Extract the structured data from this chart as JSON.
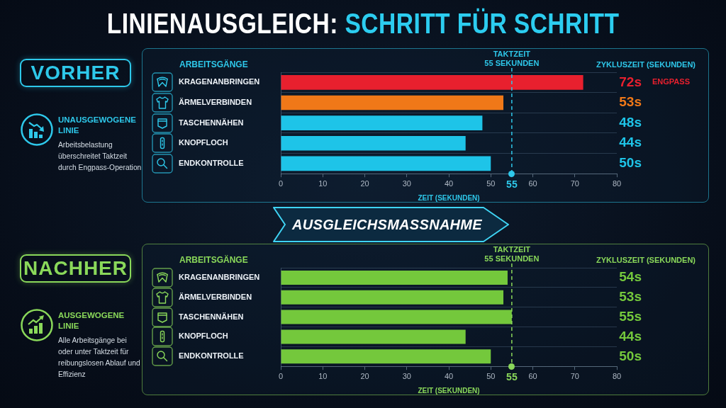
{
  "chart_data": [
    {
      "type": "other",
      "title": "LINIENAUSGLEICH: SCHRITT FÜR SCHRITT"
    },
    {
      "type": "bar",
      "orientation": "horizontal",
      "title": "VORHER",
      "ylabel": "ARBEITSGÄNGE",
      "xlabel": "ZEIT (SEKUNDEN)",
      "categories": [
        "KRAGENANBRINGEN",
        "ÄRMELVERBINDEN",
        "TASCHENNÄHEN",
        "KNOPFLOCH",
        "ENDKONTROLLE"
      ],
      "values": [
        72,
        53,
        48,
        44,
        50
      ],
      "colors": [
        "#e8202e",
        "#f07818",
        "#1ec4e8",
        "#1ec4e8",
        "#1ec4e8"
      ],
      "value_labels": [
        "72s",
        "53s",
        "48s",
        "44s",
        "50s"
      ],
      "xlim": [
        0,
        80
      ],
      "xticks": [
        0,
        10,
        20,
        30,
        40,
        50,
        55,
        60,
        70,
        80
      ],
      "grid": "y",
      "ref_lines": [
        {
          "axis": "x",
          "value": 55,
          "label": "TAKTZEIT\n55 SEKUNDEN",
          "color": "#2ec8ea",
          "line_style": "dashed"
        }
      ],
      "annotations": [
        "UNAUSGEWOGENE LINIE",
        "Arbeitsbelastung überschreitet Taktzeit durch Engpass-Operation",
        "ZYKLUSZEIT (SEKUNDEN)",
        "ENGPASS"
      ]
    },
    {
      "type": "other",
      "annotations": [
        "AUSGLEICHSMASSNAHME"
      ]
    },
    {
      "type": "bar",
      "orientation": "horizontal",
      "title": "NACHHER",
      "ylabel": "ARBEITSGÄNGE",
      "xlabel": "ZEIT (SEKUNDEN)",
      "categories": [
        "KRAGENANBRINGEN",
        "ÄRMELVERBINDEN",
        "TASCHENNÄHEN",
        "KNOPFLOCH",
        "ENDKONTROLLE"
      ],
      "values": [
        54,
        53,
        55,
        44,
        50
      ],
      "color": "#74c83c",
      "value_labels": [
        "54s",
        "53s",
        "55s",
        "44s",
        "50s"
      ],
      "xlim": [
        0,
        80
      ],
      "xticks": [
        0,
        10,
        20,
        30,
        40,
        50,
        55,
        60,
        70,
        80
      ],
      "grid": "y",
      "ref_lines": [
        {
          "axis": "x",
          "value": 55,
          "label": "TAKTZEIT\n55 SEKUNDEN",
          "color": "#8ad85a",
          "line_style": "dashed"
        }
      ],
      "annotations": [
        "AUSGEWOGENE LINIE",
        "Alle Arbeitsgänge bei oder unter Taktzeit für reibungslosen Ablauf und Effizienz",
        "ZYKLUSZEIT (SEKUNDEN)"
      ]
    }
  ]
}
